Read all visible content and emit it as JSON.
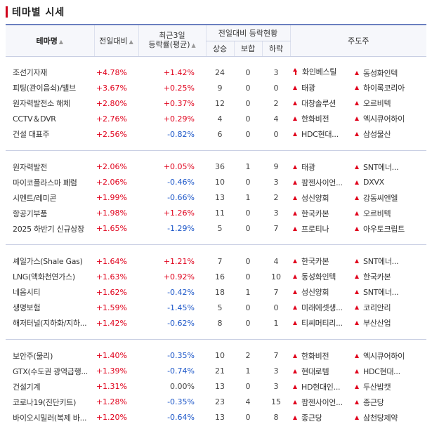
{
  "title": "테마별 시세",
  "header": {
    "theme": "테마명",
    "change": "전일대비",
    "recent_line1": "최근3일",
    "recent_line2": "등락률(평균)",
    "status": "전일대비 등락현황",
    "up": "상승",
    "flat": "보합",
    "down": "하락",
    "leaders": "주도주",
    "sort_icon": "▲"
  },
  "groups": [
    [
      {
        "name": "조선기자재",
        "change": "+4.78%",
        "recent": "+1.42%",
        "up": "24",
        "flat": "0",
        "down": "3",
        "l1": "화인베스틸",
        "l1_icon": "arrow-up",
        "l2": "동성화인텍",
        "l2_icon": "triangle-up"
      },
      {
        "name": "피팅(관이음쇠)/밸브",
        "change": "+3.67%",
        "recent": "+0.25%",
        "up": "9",
        "flat": "0",
        "down": "0",
        "l1": "태광",
        "l1_icon": "triangle-up",
        "l2": "하이록코리아",
        "l2_icon": "triangle-up"
      },
      {
        "name": "원자력발전소 해체",
        "change": "+2.80%",
        "recent": "+0.37%",
        "up": "12",
        "flat": "0",
        "down": "2",
        "l1": "대창솔루션",
        "l1_icon": "triangle-up",
        "l2": "오르비텍",
        "l2_icon": "triangle-up"
      },
      {
        "name": "CCTV＆DVR",
        "change": "+2.76%",
        "recent": "+0.29%",
        "up": "4",
        "flat": "0",
        "down": "4",
        "l1": "한화비전",
        "l1_icon": "triangle-up",
        "l2": "엑시큐어하이",
        "l2_icon": "triangle-up"
      },
      {
        "name": "건설 대표주",
        "change": "+2.56%",
        "recent": "-0.82%",
        "up": "6",
        "flat": "0",
        "down": "0",
        "l1": "HDC현대...",
        "l1_icon": "triangle-up",
        "l2": "삼성물산",
        "l2_icon": "triangle-up"
      }
    ],
    [
      {
        "name": "원자력발전",
        "change": "+2.06%",
        "recent": "+0.05%",
        "up": "36",
        "flat": "1",
        "down": "9",
        "l1": "태광",
        "l1_icon": "triangle-up",
        "l2": "SNT에너...",
        "l2_icon": "triangle-up"
      },
      {
        "name": "마이코플라스마 폐렴",
        "change": "+2.06%",
        "recent": "-0.46%",
        "up": "10",
        "flat": "0",
        "down": "3",
        "l1": "팜젠사이언...",
        "l1_icon": "triangle-up",
        "l2": "DXVX",
        "l2_icon": "triangle-up"
      },
      {
        "name": "시멘트/레미콘",
        "change": "+1.99%",
        "recent": "-0.66%",
        "up": "13",
        "flat": "1",
        "down": "2",
        "l1": "성신양회",
        "l1_icon": "triangle-up",
        "l2": "강동씨앤엘",
        "l2_icon": "triangle-up"
      },
      {
        "name": "항공기부품",
        "change": "+1.98%",
        "recent": "+1.26%",
        "up": "11",
        "flat": "0",
        "down": "3",
        "l1": "한국카본",
        "l1_icon": "triangle-up",
        "l2": "오르비텍",
        "l2_icon": "triangle-up"
      },
      {
        "name": "2025 하반기 신규상장",
        "change": "+1.65%",
        "recent": "-1.29%",
        "up": "5",
        "flat": "0",
        "down": "7",
        "l1": "프로티나",
        "l1_icon": "triangle-up",
        "l2": "아우토크립트",
        "l2_icon": "triangle-up"
      }
    ],
    [
      {
        "name": "셰일가스(Shale Gas)",
        "change": "+1.64%",
        "recent": "+1.21%",
        "up": "7",
        "flat": "0",
        "down": "4",
        "l1": "한국카본",
        "l1_icon": "triangle-up",
        "l2": "SNT에너...",
        "l2_icon": "triangle-up"
      },
      {
        "name": "LNG(액화천연가스)",
        "change": "+1.63%",
        "recent": "+0.92%",
        "up": "16",
        "flat": "0",
        "down": "10",
        "l1": "동성화인텍",
        "l1_icon": "triangle-up",
        "l2": "한국카본",
        "l2_icon": "triangle-up"
      },
      {
        "name": "네옴시티",
        "change": "+1.62%",
        "recent": "-0.42%",
        "up": "18",
        "flat": "1",
        "down": "7",
        "l1": "성신양회",
        "l1_icon": "triangle-up",
        "l2": "SNT에너...",
        "l2_icon": "triangle-up"
      },
      {
        "name": "생명보험",
        "change": "+1.59%",
        "recent": "-1.45%",
        "up": "5",
        "flat": "0",
        "down": "0",
        "l1": "미래에셋생...",
        "l1_icon": "triangle-up",
        "l2": "코리안리",
        "l2_icon": "triangle-up"
      },
      {
        "name": "해저터널(지하화/지하...",
        "change": "+1.42%",
        "recent": "-0.62%",
        "up": "8",
        "flat": "0",
        "down": "1",
        "l1": "티씨머티리...",
        "l1_icon": "triangle-up",
        "l2": "부산산업",
        "l2_icon": "triangle-up"
      }
    ],
    [
      {
        "name": "보안주(물리)",
        "change": "+1.40%",
        "recent": "-0.35%",
        "up": "10",
        "flat": "2",
        "down": "7",
        "l1": "한화비전",
        "l1_icon": "triangle-up",
        "l2": "엑시큐어하이",
        "l2_icon": "triangle-up"
      },
      {
        "name": "GTX(수도권 광역급행...",
        "change": "+1.39%",
        "recent": "-0.74%",
        "up": "21",
        "flat": "1",
        "down": "3",
        "l1": "현대로템",
        "l1_icon": "triangle-up",
        "l2": "HDC현대...",
        "l2_icon": "triangle-up"
      },
      {
        "name": "건설기계",
        "change": "+1.31%",
        "recent": "0.00%",
        "up": "13",
        "flat": "0",
        "down": "3",
        "l1": "HD현대인...",
        "l1_icon": "triangle-up",
        "l2": "두산밥캣",
        "l2_icon": "triangle-up"
      },
      {
        "name": "코로나19(진단키트)",
        "change": "+1.28%",
        "recent": "-0.35%",
        "up": "23",
        "flat": "4",
        "down": "15",
        "l1": "팜젠사이언...",
        "l1_icon": "triangle-up",
        "l2": "종근당",
        "l2_icon": "triangle-up"
      },
      {
        "name": "바이오시밀러(복제 바...",
        "change": "+1.20%",
        "recent": "-0.64%",
        "up": "13",
        "flat": "0",
        "down": "8",
        "l1": "종근당",
        "l1_icon": "triangle-up",
        "l2": "삼천당제약",
        "l2_icon": "triangle-up"
      }
    ]
  ],
  "colors": {
    "up": "#e0001b",
    "down": "#1a55c8",
    "header_line": "#6a7fbf"
  }
}
